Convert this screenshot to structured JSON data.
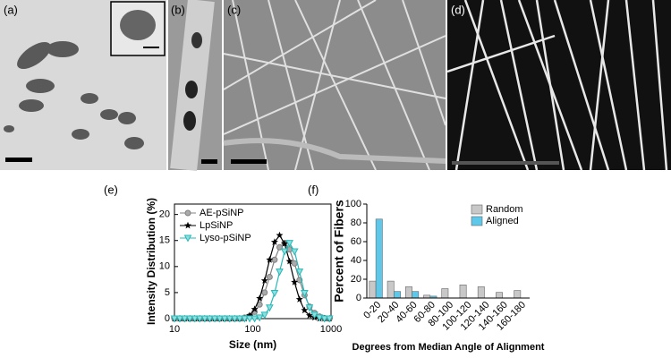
{
  "panel_labels": [
    "(a)",
    "(b)",
    "(c)",
    "(d)",
    "(e)",
    "(f)"
  ],
  "chart_data": [
    {
      "type": "line",
      "xlabel": "Size (nm)",
      "ylabel": "Intensity Distribution (%)",
      "xscale": "log",
      "xlim": [
        10,
        1000
      ],
      "xticks": [
        10,
        100,
        1000
      ],
      "ylim": [
        0,
        22
      ],
      "yticks": [
        0,
        5,
        10,
        15,
        20
      ],
      "legend": "upper left",
      "x": [
        10,
        11.7,
        13.5,
        15.7,
        18.2,
        21,
        24.4,
        28.2,
        32.7,
        37.8,
        43.8,
        50.7,
        58.8,
        68.1,
        78.8,
        91.3,
        105.7,
        122.4,
        141.8,
        164.2,
        190.1,
        220.2,
        255,
        295.3,
        342,
        396.1,
        458.7,
        531.2,
        615.1,
        712.4,
        825,
        955.4
      ],
      "series": [
        {
          "name": "AE-pSiNP",
          "color": "#808080",
          "marker": "circle",
          "values": [
            0,
            0,
            0,
            0,
            0,
            0,
            0,
            0,
            0,
            0,
            0,
            0,
            0,
            0,
            0.2,
            0.5,
            1.3,
            2.7,
            5.0,
            8.0,
            11.3,
            13.7,
            14.5,
            13.3,
            10.6,
            7.4,
            4.5,
            2.3,
            1.1,
            0.4,
            0.1,
            0
          ]
        },
        {
          "name": "LpSiNP",
          "color": "#000000",
          "marker": "star",
          "values": [
            0,
            0,
            0,
            0,
            0,
            0,
            0,
            0,
            0,
            0,
            0,
            0,
            0,
            0,
            0,
            0.6,
            1.8,
            3.9,
            7.3,
            11.3,
            14.7,
            16,
            14.4,
            11.0,
            7.0,
            3.7,
            1.6,
            0.6,
            0.2,
            0,
            0,
            0
          ]
        },
        {
          "name": "Lyso-pSiNP",
          "color": "#2ab7b7",
          "marker": "triangle-down",
          "values": [
            0,
            0,
            0,
            0,
            0,
            0,
            0,
            0,
            0,
            0,
            0,
            0,
            0,
            0,
            0,
            0,
            0,
            0.2,
            0.7,
            2.1,
            4.9,
            9.0,
            12.9,
            14.5,
            12.9,
            9.0,
            4.9,
            2.1,
            0.7,
            0.2,
            0,
            0
          ]
        }
      ]
    },
    {
      "type": "bar",
      "xlabel": "Degrees from Median Angle of Alignment",
      "ylabel": "Percent of Fibers",
      "categories": [
        "0-20",
        "20-40",
        "40-60",
        "60-80",
        "80-100",
        "100-120",
        "120-140",
        "140-160",
        "160-180"
      ],
      "ylim": [
        0,
        100
      ],
      "yticks": [
        0,
        20,
        40,
        60,
        80,
        100
      ],
      "legend": "upper right",
      "series": [
        {
          "name": "Random",
          "color": "#c8c8c8",
          "values": [
            18,
            18,
            12,
            3,
            10,
            14,
            12,
            6,
            8
          ]
        },
        {
          "name": "Aligned",
          "color": "#5ec8ea",
          "values": [
            84,
            7,
            7,
            2,
            0,
            0,
            0,
            0,
            0
          ]
        }
      ]
    }
  ]
}
